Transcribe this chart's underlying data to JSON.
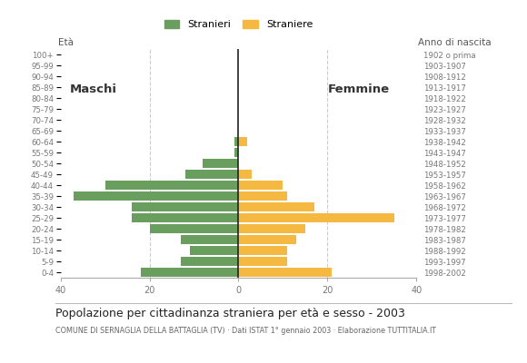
{
  "age_groups_bottom_to_top": [
    "0-4",
    "5-9",
    "10-14",
    "15-19",
    "20-24",
    "25-29",
    "30-34",
    "35-39",
    "40-44",
    "45-49",
    "50-54",
    "55-59",
    "60-64",
    "65-69",
    "70-74",
    "75-79",
    "80-84",
    "85-89",
    "90-94",
    "95-99",
    "100+"
  ],
  "birth_years_bottom_to_top": [
    "1998-2002",
    "1993-1997",
    "1988-1992",
    "1983-1987",
    "1978-1982",
    "1973-1977",
    "1968-1972",
    "1963-1967",
    "1958-1962",
    "1953-1957",
    "1948-1952",
    "1943-1947",
    "1938-1942",
    "1933-1937",
    "1928-1932",
    "1923-1927",
    "1918-1922",
    "1913-1917",
    "1908-1912",
    "1903-1907",
    "1902 o prima"
  ],
  "males_bottom_to_top": [
    22,
    13,
    11,
    13,
    20,
    24,
    24,
    37,
    30,
    12,
    8,
    1,
    1,
    0,
    0,
    0,
    0,
    0,
    0,
    0,
    0
  ],
  "females_bottom_to_top": [
    21,
    11,
    11,
    13,
    15,
    35,
    17,
    11,
    10,
    3,
    0,
    0,
    2,
    0,
    0,
    0,
    0,
    0,
    0,
    0,
    0
  ],
  "male_color": "#6a9e5e",
  "female_color": "#f5b942",
  "title": "Popolazione per cittadinanza straniera per età e sesso - 2003",
  "subtitle": "COMUNE DI SERNAGLIA DELLA BATTAGLIA (TV) · Dati ISTAT 1° gennaio 2003 · Elaborazione TUTTITALIA.IT",
  "legend_male": "Stranieri",
  "legend_female": "Straniere",
  "age_label": "Età",
  "birth_label": "Anno di nascita",
  "maschi_label": "Maschi",
  "femmine_label": "Femmine",
  "xlim": 40,
  "xticks": [
    -40,
    -20,
    0,
    20,
    40
  ],
  "xticklabels": [
    "40",
    "20",
    "0",
    "20",
    "40"
  ],
  "background_color": "#ffffff",
  "grid_color": "#cccccc",
  "bar_height": 0.82
}
